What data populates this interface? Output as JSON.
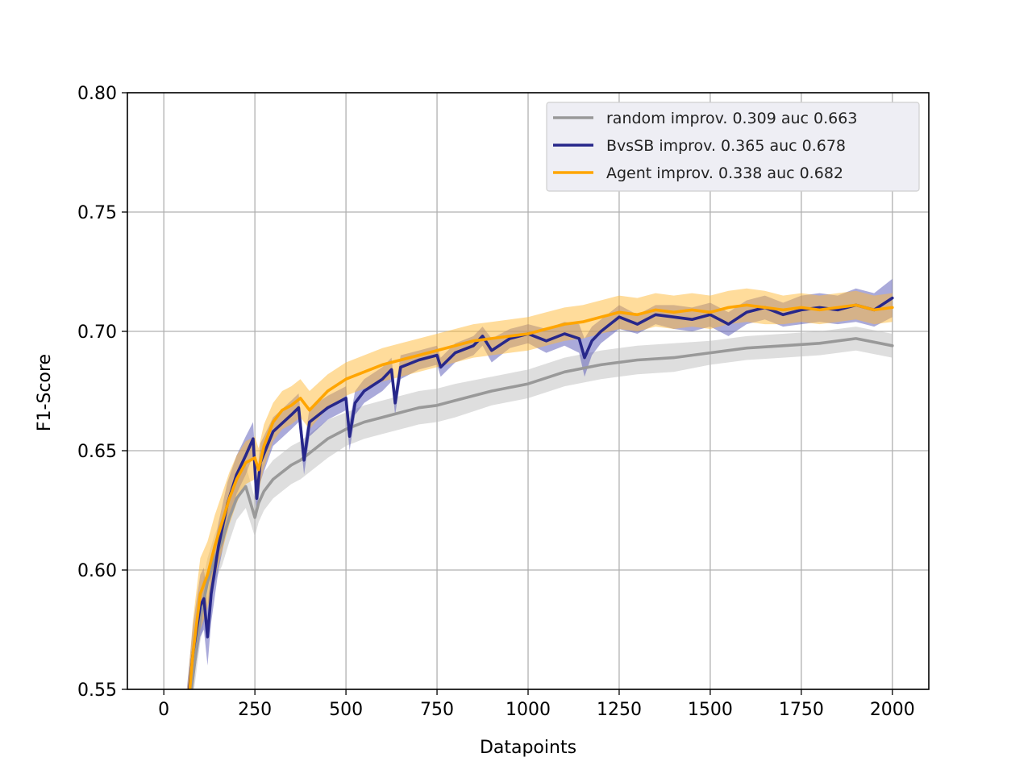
{
  "chart_data": {
    "type": "line",
    "title": "",
    "xlabel": "Datapoints",
    "ylabel": "F1-Score",
    "xlim": [
      -100,
      2100
    ],
    "ylim": [
      0.55,
      0.8
    ],
    "xticks": [
      "0",
      "250",
      "500",
      "750",
      "1000",
      "1250",
      "1500",
      "1750",
      "2000"
    ],
    "yticks": [
      "0.55",
      "0.60",
      "0.65",
      "0.70",
      "0.75",
      "0.80"
    ],
    "grid": true,
    "legend_position": "top-right",
    "series": [
      {
        "name": "random improv. 0.309 auc 0.663",
        "color": "#999999",
        "band_color": "#bdbdbd",
        "x": [
          60,
          80,
          100,
          120,
          140,
          160,
          180,
          200,
          225,
          250,
          260,
          275,
          300,
          325,
          350,
          375,
          400,
          450,
          500,
          550,
          600,
          650,
          700,
          750,
          800,
          900,
          1000,
          1100,
          1200,
          1300,
          1400,
          1500,
          1600,
          1700,
          1800,
          1900,
          2000
        ],
        "y": [
          0.53,
          0.555,
          0.58,
          0.595,
          0.605,
          0.612,
          0.622,
          0.63,
          0.635,
          0.622,
          0.628,
          0.633,
          0.638,
          0.641,
          0.644,
          0.646,
          0.649,
          0.655,
          0.659,
          0.662,
          0.664,
          0.666,
          0.668,
          0.669,
          0.671,
          0.675,
          0.678,
          0.683,
          0.686,
          0.688,
          0.689,
          0.691,
          0.693,
          0.694,
          0.695,
          0.697,
          0.694
        ],
        "band": [
          0.008,
          0.009,
          0.01,
          0.01,
          0.01,
          0.01,
          0.01,
          0.009,
          0.009,
          0.008,
          0.008,
          0.008,
          0.008,
          0.008,
          0.008,
          0.008,
          0.008,
          0.008,
          0.007,
          0.007,
          0.007,
          0.007,
          0.007,
          0.007,
          0.007,
          0.006,
          0.006,
          0.006,
          0.006,
          0.006,
          0.006,
          0.005,
          0.005,
          0.005,
          0.005,
          0.005,
          0.005
        ]
      },
      {
        "name": "BvsSB improv. 0.365 auc 0.678",
        "color": "#27278a",
        "band_color": "#5555b5",
        "x": [
          60,
          80,
          100,
          110,
          120,
          130,
          150,
          175,
          200,
          225,
          245,
          255,
          265,
          300,
          350,
          370,
          385,
          400,
          450,
          500,
          510,
          525,
          550,
          600,
          625,
          635,
          650,
          700,
          750,
          760,
          800,
          850,
          875,
          900,
          950,
          1000,
          1050,
          1100,
          1140,
          1155,
          1175,
          1200,
          1250,
          1300,
          1350,
          1400,
          1450,
          1500,
          1550,
          1600,
          1650,
          1700,
          1750,
          1800,
          1850,
          1900,
          1950,
          2000
        ],
        "y": [
          0.535,
          0.565,
          0.585,
          0.588,
          0.572,
          0.59,
          0.61,
          0.628,
          0.64,
          0.648,
          0.655,
          0.63,
          0.645,
          0.658,
          0.665,
          0.668,
          0.646,
          0.662,
          0.668,
          0.672,
          0.656,
          0.67,
          0.675,
          0.68,
          0.684,
          0.67,
          0.685,
          0.688,
          0.69,
          0.685,
          0.691,
          0.694,
          0.698,
          0.692,
          0.697,
          0.699,
          0.696,
          0.699,
          0.697,
          0.689,
          0.696,
          0.7,
          0.706,
          0.703,
          0.707,
          0.706,
          0.705,
          0.707,
          0.703,
          0.708,
          0.71,
          0.707,
          0.709,
          0.71,
          0.709,
          0.711,
          0.709,
          0.714
        ],
        "band": [
          0.01,
          0.012,
          0.013,
          0.013,
          0.012,
          0.012,
          0.01,
          0.009,
          0.008,
          0.008,
          0.007,
          0.008,
          0.008,
          0.006,
          0.006,
          0.006,
          0.006,
          0.006,
          0.005,
          0.005,
          0.006,
          0.005,
          0.005,
          0.005,
          0.005,
          0.005,
          0.005,
          0.004,
          0.004,
          0.004,
          0.004,
          0.004,
          0.004,
          0.005,
          0.004,
          0.004,
          0.005,
          0.005,
          0.006,
          0.008,
          0.006,
          0.005,
          0.005,
          0.004,
          0.004,
          0.005,
          0.005,
          0.005,
          0.005,
          0.005,
          0.005,
          0.005,
          0.006,
          0.006,
          0.006,
          0.007,
          0.007,
          0.008
        ]
      },
      {
        "name": "Agent improv. 0.338 auc 0.682",
        "color": "#ffa500",
        "band_color": "#ffb938",
        "x": [
          60,
          80,
          100,
          120,
          140,
          160,
          180,
          200,
          225,
          250,
          260,
          275,
          300,
          325,
          350,
          375,
          400,
          450,
          500,
          550,
          600,
          650,
          700,
          750,
          800,
          850,
          900,
          950,
          1000,
          1050,
          1100,
          1150,
          1200,
          1250,
          1300,
          1350,
          1400,
          1450,
          1500,
          1550,
          1600,
          1650,
          1700,
          1750,
          1800,
          1850,
          1900,
          1950,
          2000
        ],
        "y": [
          0.53,
          0.565,
          0.59,
          0.598,
          0.61,
          0.62,
          0.63,
          0.638,
          0.645,
          0.647,
          0.642,
          0.652,
          0.662,
          0.667,
          0.669,
          0.672,
          0.667,
          0.675,
          0.68,
          0.683,
          0.686,
          0.688,
          0.69,
          0.692,
          0.694,
          0.696,
          0.697,
          0.698,
          0.699,
          0.701,
          0.703,
          0.704,
          0.706,
          0.708,
          0.707,
          0.709,
          0.708,
          0.709,
          0.708,
          0.71,
          0.711,
          0.71,
          0.709,
          0.71,
          0.709,
          0.71,
          0.711,
          0.709,
          0.71
        ],
        "band": [
          0.012,
          0.014,
          0.015,
          0.014,
          0.013,
          0.012,
          0.011,
          0.01,
          0.009,
          0.009,
          0.009,
          0.009,
          0.008,
          0.008,
          0.008,
          0.008,
          0.008,
          0.007,
          0.007,
          0.007,
          0.007,
          0.007,
          0.007,
          0.007,
          0.007,
          0.007,
          0.007,
          0.007,
          0.007,
          0.007,
          0.007,
          0.007,
          0.007,
          0.007,
          0.007,
          0.007,
          0.007,
          0.007,
          0.007,
          0.007,
          0.007,
          0.007,
          0.006,
          0.006,
          0.006,
          0.006,
          0.006,
          0.006,
          0.006
        ]
      }
    ]
  }
}
